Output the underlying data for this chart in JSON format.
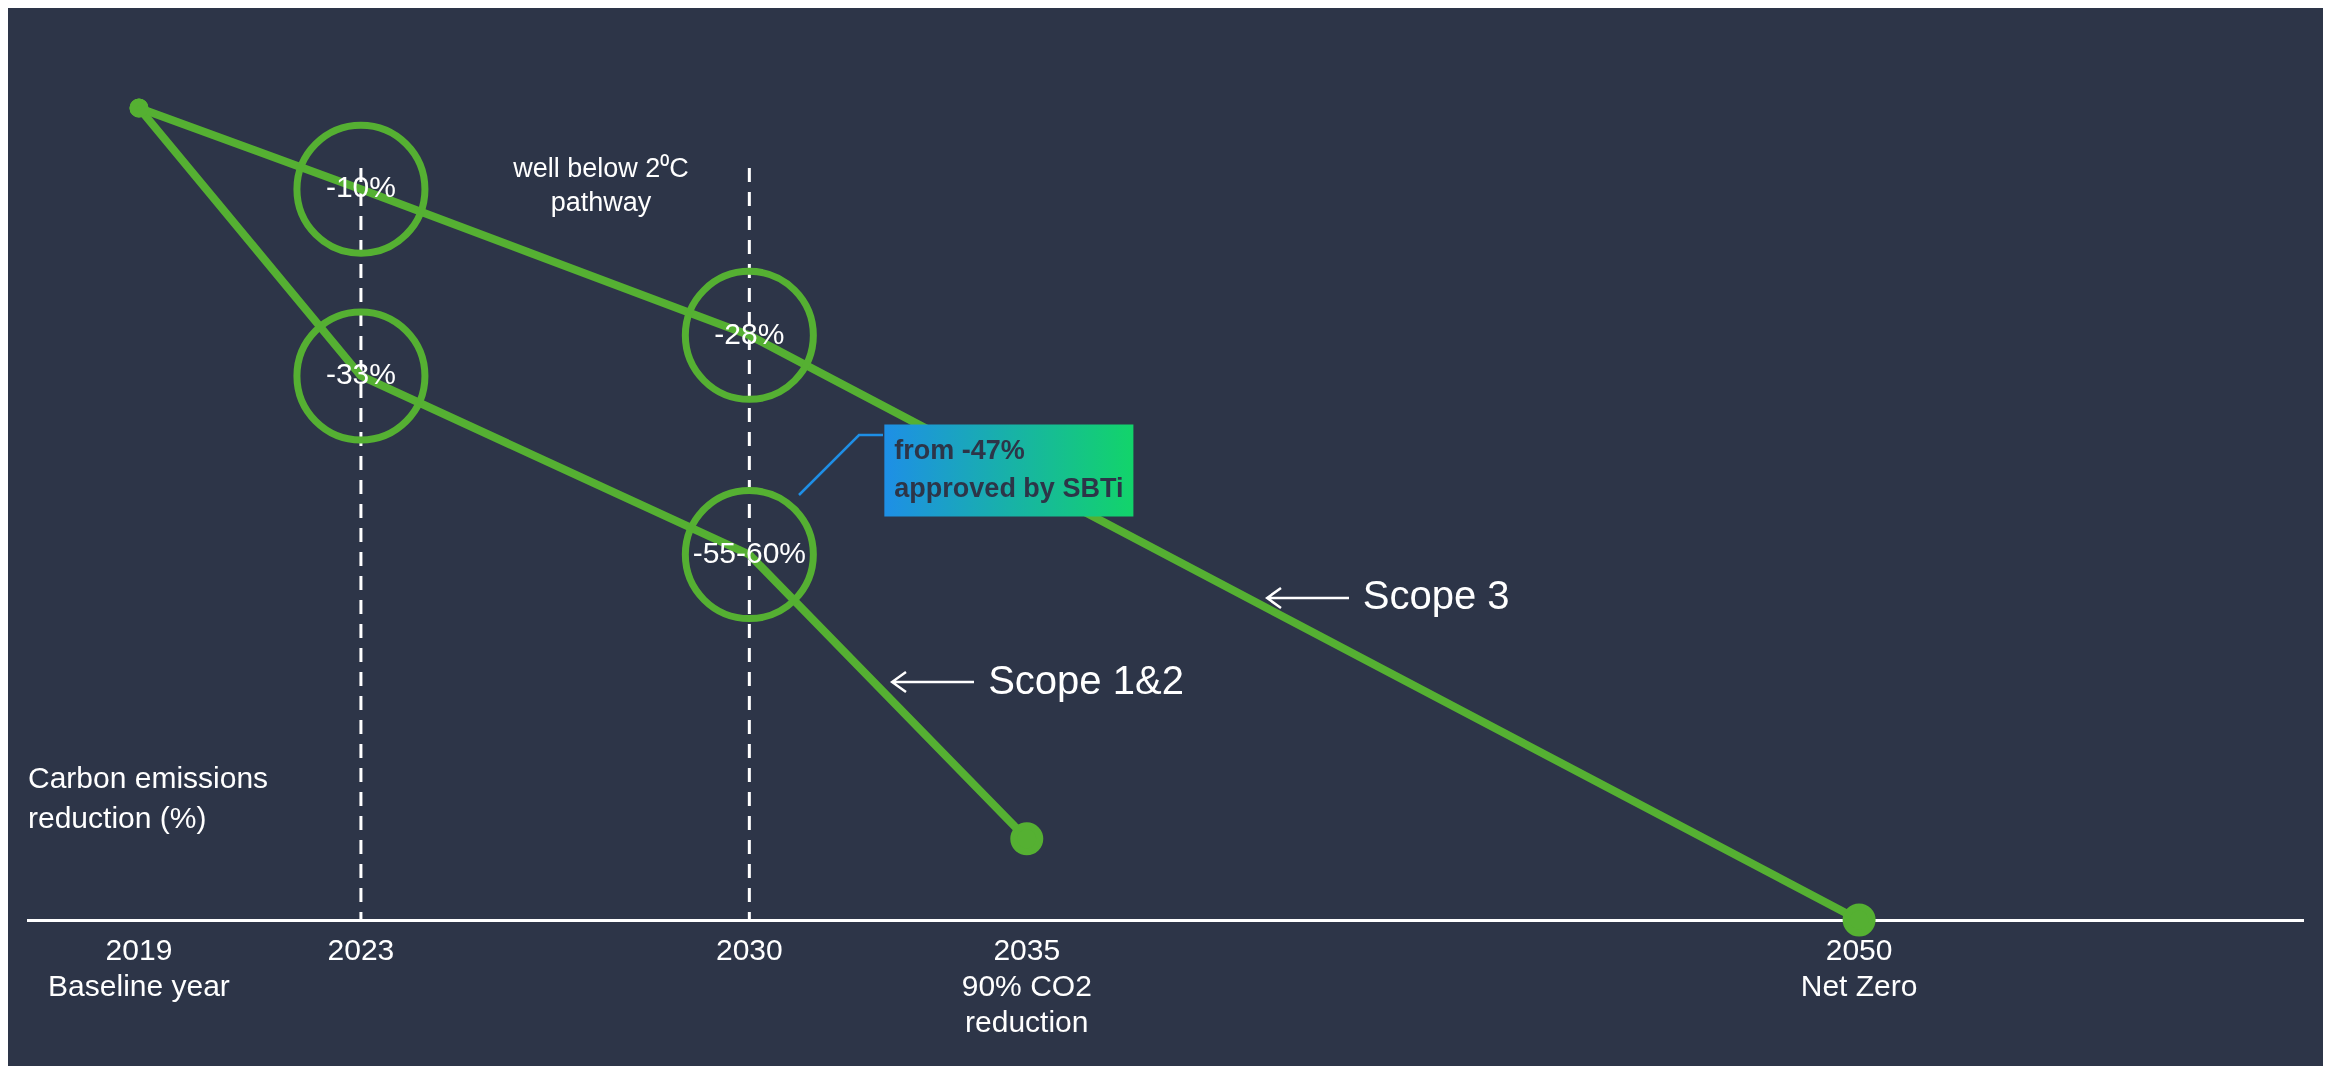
{
  "chart_data": {
    "type": "line",
    "ylabel": "Carbon emissions reduction (%)",
    "series": [
      {
        "name": "Scope 3",
        "color": "#55b032",
        "x": [
          2019,
          2023,
          2030,
          2050
        ],
        "values": [
          0,
          -10,
          -28,
          -100
        ],
        "value_labels": [
          null,
          "-10%",
          "-28%",
          null
        ]
      },
      {
        "name": "Scope 1&2",
        "color": "#55b032",
        "x": [
          2019,
          2023,
          2030,
          2035
        ],
        "values": [
          0,
          -33,
          -55,
          -90
        ],
        "value_labels": [
          null,
          "-33%",
          "-55-60%",
          null
        ]
      }
    ],
    "xlim": [
      2017,
      2058
    ],
    "xticks": [
      {
        "value": 2019,
        "label": "2019\nBaseline year"
      },
      {
        "value": 2023,
        "label": "2023"
      },
      {
        "value": 2030,
        "label": "2030"
      },
      {
        "value": 2035,
        "label": "2035\n90% CO2\nreduction"
      },
      {
        "value": 2050,
        "label": "2050\nNet Zero"
      }
    ],
    "ref_lines": [
      {
        "axis": "x",
        "value": 2023,
        "color": "#ffffff",
        "line_style": "dashed"
      },
      {
        "axis": "x",
        "value": 2030,
        "color": "#ffffff",
        "line_style": "dashed"
      }
    ],
    "annotations": [
      "well below 2⁰C\npathway",
      "from -47%\napproved by SBTi"
    ],
    "marker": "circle",
    "line_style": "solid",
    "grid": false,
    "legend": false
  }
}
